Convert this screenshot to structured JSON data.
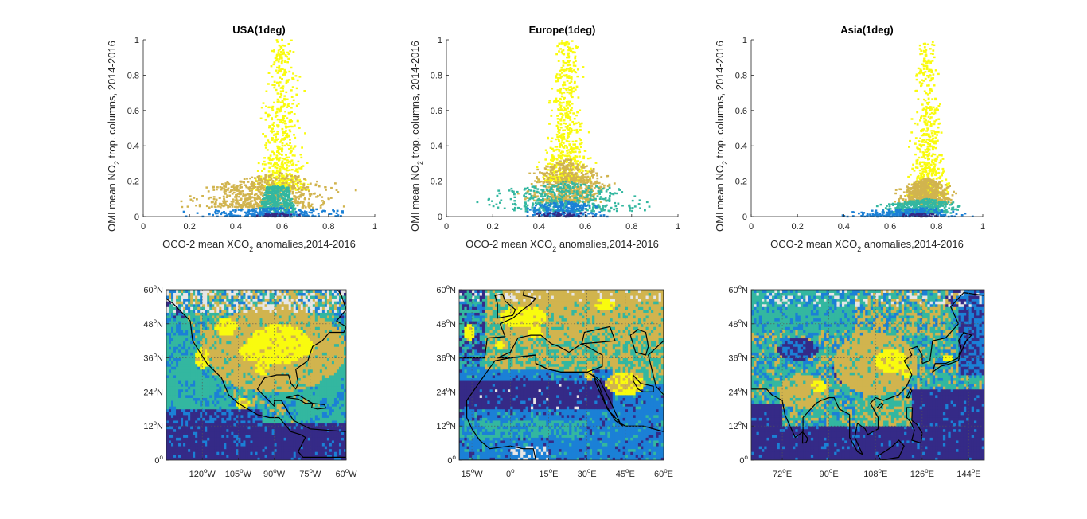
{
  "colors": {
    "c1": "#352a87",
    "c2": "#1b80d6",
    "c3": "#33b7a0",
    "c4": "#d1b44e",
    "c5": "#f9fb0e",
    "nodata": "#e6e6e6"
  },
  "chart_data": [
    {
      "id": "usa-scatter",
      "type": "scatter",
      "title": "USA(1deg)",
      "xlabel": {
        "prefix": "OCO-2 mean XCO",
        "sub": "2",
        "suffix": " anomalies,2014-2016"
      },
      "ylabel": {
        "prefix": "OMI mean NO",
        "sub": "2",
        "suffix": " trop. columns, 2014-2016"
      },
      "xlim": [
        0,
        1
      ],
      "ylim": [
        0,
        1
      ],
      "xticks": [
        "0",
        "0.2",
        "0.4",
        "0.6",
        "0.8",
        "1"
      ],
      "yticks": [
        "0",
        "0.2",
        "0.4",
        "0.6",
        "0.8",
        "1"
      ],
      "cloud": {
        "center_x": 0.6,
        "spread_x": 0.11,
        "peak_y": 1.0
      },
      "clusters": [
        {
          "class": "c1",
          "x_range": [
            0.45,
            0.7
          ],
          "y_range": [
            0,
            0.02
          ]
        },
        {
          "class": "c2",
          "x_range": [
            0.1,
            1.0
          ],
          "y_range": [
            0,
            0.05
          ]
        },
        {
          "class": "c3",
          "x_range": [
            0.5,
            0.68
          ],
          "y_range": [
            0,
            0.17
          ]
        },
        {
          "class": "c4",
          "x_range": [
            0.1,
            0.95
          ],
          "y_range": [
            0.05,
            0.25
          ]
        },
        {
          "class": "c5",
          "x_range": [
            0.2,
            0.9
          ],
          "y_range": [
            0.15,
            1.0
          ]
        }
      ]
    },
    {
      "id": "europe-scatter",
      "type": "scatter",
      "title": "Europe(1deg)",
      "xlabel": {
        "prefix": "OCO-2 mean XCO",
        "sub": "2",
        "suffix": " anomalies,2014-2016"
      },
      "ylabel": {
        "prefix": "OMI mean NO",
        "sub": "2",
        "suffix": " trop. columns, 2014-2016"
      },
      "xlim": [
        0,
        1
      ],
      "ylim": [
        0,
        1
      ],
      "xticks": [
        "0",
        "0.2",
        "0.4",
        "0.6",
        "0.8",
        "1"
      ],
      "yticks": [
        "0",
        "0.2",
        "0.4",
        "0.6",
        "0.8",
        "1"
      ],
      "cloud": {
        "center_x": 0.52,
        "spread_x": 0.1,
        "peak_y": 1.0
      },
      "clusters": [
        {
          "class": "c1",
          "x_range": [
            0.3,
            0.7
          ],
          "y_range": [
            0,
            0.03
          ]
        },
        {
          "class": "c2",
          "x_range": [
            0.3,
            0.72
          ],
          "y_range": [
            0,
            0.09
          ]
        },
        {
          "class": "c3",
          "x_range": [
            0.05,
            0.95
          ],
          "y_range": [
            0.03,
            0.2
          ]
        },
        {
          "class": "c4",
          "x_range": [
            0.3,
            0.75
          ],
          "y_range": [
            0.08,
            0.33
          ]
        },
        {
          "class": "c5",
          "x_range": [
            0.3,
            0.75
          ],
          "y_range": [
            0.2,
            1.0
          ]
        }
      ]
    },
    {
      "id": "asia-scatter",
      "type": "scatter",
      "title": "Asia(1deg)",
      "xlabel": {
        "prefix": "OCO-2 mean XCO",
        "sub": "2",
        "suffix": " anomalies,2014-2016"
      },
      "ylabel": {
        "prefix": "OMI mean NO",
        "sub": "2",
        "suffix": " trop. columns, 2014-2016"
      },
      "xlim": [
        0,
        1
      ],
      "ylim": [
        0,
        1
      ],
      "xticks": [
        "0",
        "0.2",
        "0.4",
        "0.6",
        "0.8",
        "1"
      ],
      "yticks": [
        "0",
        "0.2",
        "0.4",
        "0.6",
        "0.8",
        "1"
      ],
      "cloud": {
        "center_x": 0.76,
        "spread_x": 0.08,
        "peak_y": 1.0
      },
      "clusters": [
        {
          "class": "c1",
          "x_range": [
            0.6,
            0.85
          ],
          "y_range": [
            0,
            0.02
          ]
        },
        {
          "class": "c2",
          "x_range": [
            0.35,
            1.0
          ],
          "y_range": [
            0,
            0.05
          ]
        },
        {
          "class": "c3",
          "x_range": [
            0.5,
            0.95
          ],
          "y_range": [
            0.02,
            0.1
          ]
        },
        {
          "class": "c4",
          "x_range": [
            0.6,
            0.9
          ],
          "y_range": [
            0.07,
            0.22
          ]
        },
        {
          "class": "c5",
          "x_range": [
            0.6,
            1.0
          ],
          "y_range": [
            0.12,
            1.0
          ]
        }
      ]
    },
    {
      "id": "usa-map",
      "type": "heatmap",
      "region": "usa",
      "lon_range": [
        -135,
        -60
      ],
      "lat_range": [
        0,
        60
      ],
      "xticks": [
        {
          "lon": -120,
          "num": "120",
          "hemi": "W"
        },
        {
          "lon": -105,
          "num": "105",
          "hemi": "W"
        },
        {
          "lon": -90,
          "num": "90",
          "hemi": "W"
        },
        {
          "lon": -75,
          "num": "75",
          "hemi": "W"
        },
        {
          "lon": -60,
          "num": "60",
          "hemi": "W"
        }
      ],
      "yticks": [
        {
          "lat": 0,
          "num": "0",
          "hemi": ""
        },
        {
          "lat": 12,
          "num": "12",
          "hemi": "N"
        },
        {
          "lat": 24,
          "num": "24",
          "hemi": "N"
        },
        {
          "lat": 36,
          "num": "36",
          "hemi": "N"
        },
        {
          "lat": 48,
          "num": "48",
          "hemi": "N"
        },
        {
          "lat": 60,
          "num": "60",
          "hemi": "N"
        }
      ]
    },
    {
      "id": "europe-map",
      "type": "heatmap",
      "region": "europe",
      "lon_range": [
        -20,
        60
      ],
      "lat_range": [
        0,
        60
      ],
      "xticks": [
        {
          "lon": -15,
          "num": "15",
          "hemi": "W"
        },
        {
          "lon": 0,
          "num": "0",
          "hemi": ""
        },
        {
          "lon": 15,
          "num": "15",
          "hemi": "E"
        },
        {
          "lon": 30,
          "num": "30",
          "hemi": "E"
        },
        {
          "lon": 45,
          "num": "45",
          "hemi": "E"
        },
        {
          "lon": 60,
          "num": "60",
          "hemi": "E"
        }
      ],
      "yticks": [
        {
          "lat": 0,
          "num": "0",
          "hemi": ""
        },
        {
          "lat": 12,
          "num": "12",
          "hemi": "N"
        },
        {
          "lat": 24,
          "num": "24",
          "hemi": "N"
        },
        {
          "lat": 36,
          "num": "36",
          "hemi": "N"
        },
        {
          "lat": 48,
          "num": "48",
          "hemi": "N"
        },
        {
          "lat": 60,
          "num": "60",
          "hemi": "N"
        }
      ]
    },
    {
      "id": "asia-map",
      "type": "heatmap",
      "region": "asia",
      "lon_range": [
        60,
        150
      ],
      "lat_range": [
        0,
        60
      ],
      "xticks": [
        {
          "lon": 72,
          "num": "72",
          "hemi": "E"
        },
        {
          "lon": 90,
          "num": "90",
          "hemi": "E"
        },
        {
          "lon": 108,
          "num": "108",
          "hemi": "E"
        },
        {
          "lon": 126,
          "num": "126",
          "hemi": "E"
        },
        {
          "lon": 144,
          "num": "144",
          "hemi": "E"
        }
      ],
      "yticks": [
        {
          "lat": 0,
          "num": "0",
          "hemi": ""
        },
        {
          "lat": 12,
          "num": "12",
          "hemi": "N"
        },
        {
          "lat": 24,
          "num": "24",
          "hemi": "N"
        },
        {
          "lat": 36,
          "num": "36",
          "hemi": "N"
        },
        {
          "lat": 48,
          "num": "48",
          "hemi": "N"
        },
        {
          "lat": 60,
          "num": "60",
          "hemi": "N"
        }
      ]
    }
  ]
}
